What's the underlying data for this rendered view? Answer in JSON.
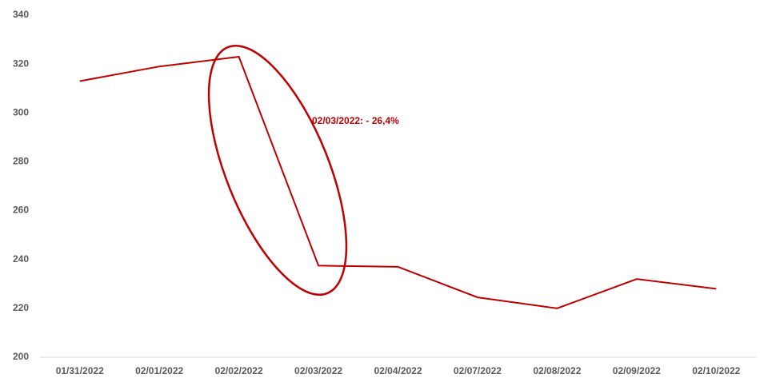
{
  "chart_data": {
    "type": "line",
    "annotation": "02/03/2022: - 26,4%",
    "categories": [
      "01/31/2022",
      "02/01/2022",
      "02/02/2022",
      "02/03/2022",
      "02/04/2022",
      "02/07/2022",
      "02/08/2022",
      "02/09/2022",
      "02/10/2022"
    ],
    "series": [
      {
        "color": "#c00000",
        "values": [
          313,
          319,
          323,
          237.5,
          237,
          224.5,
          220,
          232,
          228
        ]
      }
    ],
    "ylim": [
      200,
      340
    ],
    "yticks": [
      200,
      220,
      240,
      260,
      280,
      300,
      320,
      340
    ],
    "grid": false
  }
}
